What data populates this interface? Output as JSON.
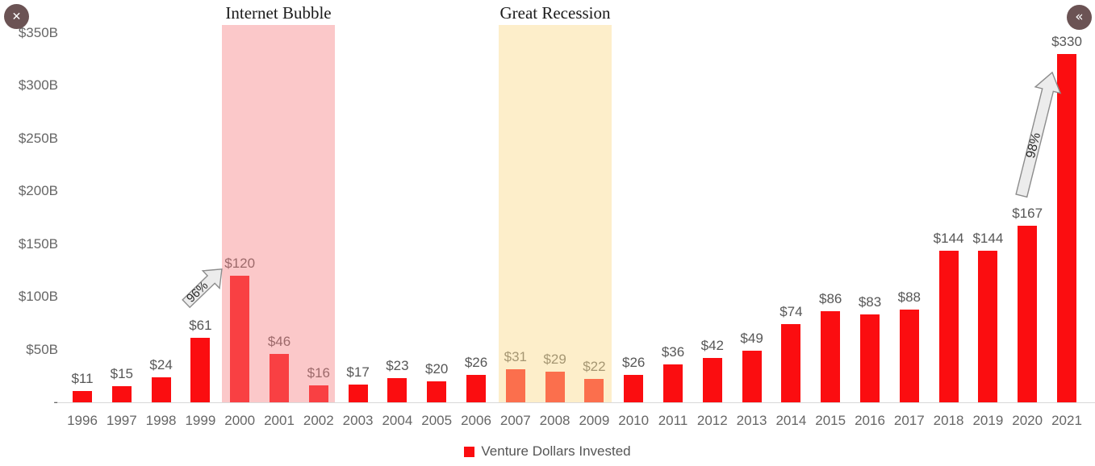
{
  "window": {
    "close_glyph": "✕",
    "collapse_glyph": "«"
  },
  "annotations": {
    "internet_bubble": {
      "label": "Internet Bubble",
      "growth_label": "96%"
    },
    "great_recession": {
      "label": "Great Recession",
      "growth_label": "98%"
    }
  },
  "legend": {
    "label": "Venture Dollars Invested",
    "swatch_color": "#fb0d10"
  },
  "colors": {
    "bar": "#fb0d10",
    "internet_bubble_band": "rgba(246,130,132,0.44)",
    "great_recession_band": "rgba(251,219,144,0.48)",
    "axis_text": "#666666",
    "arrow_fill": "#ececec",
    "arrow_stroke": "#8c8c8c"
  },
  "chart_data": {
    "type": "bar",
    "title": "",
    "xlabel": "",
    "ylabel": "",
    "categories": [
      1996,
      1997,
      1998,
      1999,
      2000,
      2001,
      2002,
      2003,
      2004,
      2005,
      2006,
      2007,
      2008,
      2009,
      2010,
      2011,
      2012,
      2013,
      2014,
      2015,
      2016,
      2017,
      2018,
      2019,
      2020,
      2021
    ],
    "values": [
      11,
      15,
      24,
      61,
      120,
      46,
      16,
      17,
      23,
      20,
      26,
      31,
      29,
      22,
      26,
      36,
      42,
      49,
      74,
      86,
      83,
      88,
      144,
      144,
      167,
      330
    ],
    "value_labels": [
      "$11",
      "$15",
      "$24",
      "$61",
      "$120",
      "$46",
      "$16",
      "$17",
      "$23",
      "$20",
      "$26",
      "$31",
      "$29",
      "$22",
      "$26",
      "$36",
      "$42",
      "$49",
      "$74",
      "$86",
      "$83",
      "$88",
      "$144",
      "$144",
      "$167",
      "$330"
    ],
    "series_name": "Venture Dollars Invested",
    "ylim": [
      0,
      350
    ],
    "y_ticks": [
      {
        "label": "$350B",
        "value": 350
      },
      {
        "label": "$300B",
        "value": 300
      },
      {
        "label": "$250B",
        "value": 250
      },
      {
        "label": "$200B",
        "value": 200
      },
      {
        "label": "$150B",
        "value": 150
      },
      {
        "label": "$100B",
        "value": 100
      },
      {
        "label": "$50B",
        "value": 50
      },
      {
        "label": "-",
        "value": 0
      }
    ],
    "grid": false,
    "legend_position": "bottom",
    "highlight_bands": [
      {
        "label": "Internet Bubble",
        "from": 2000,
        "to": 2002,
        "growth_annotation": "96%"
      },
      {
        "label": "Great Recession",
        "from": 2007,
        "to": 2009,
        "growth_annotation": "98%"
      }
    ]
  }
}
